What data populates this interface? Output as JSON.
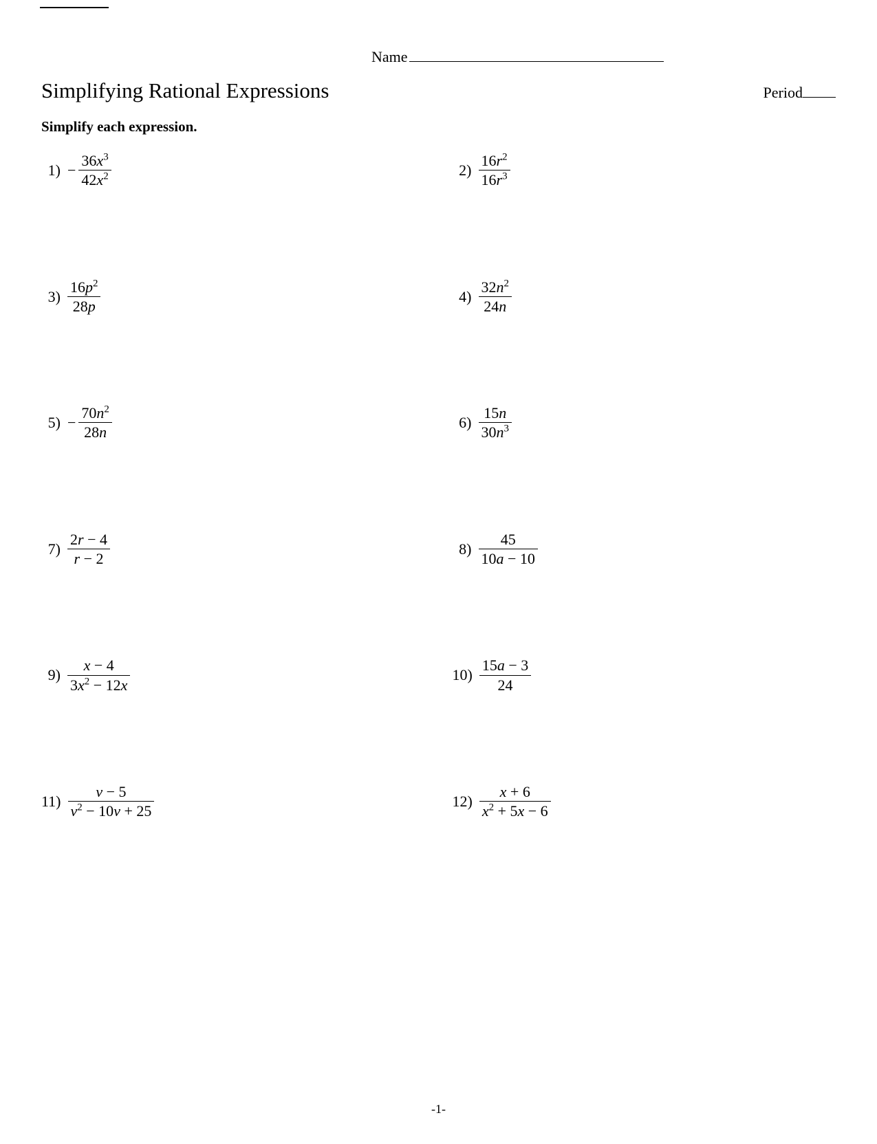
{
  "header": {
    "name_label": "Name",
    "period_label": "Period"
  },
  "title": "Simplifying Rational Expressions",
  "instructions": "Simplify each expression.",
  "problems": [
    {
      "n": "1)",
      "neg": true,
      "num_html": "36<span class='var'>x</span><sup>3</sup>",
      "den_html": "42<span class='var'>x</span><sup>2</sup>"
    },
    {
      "n": "2)",
      "neg": false,
      "num_html": "16<span class='var'>r</span><sup>2</sup>",
      "den_html": "16<span class='var'>r</span><sup>3</sup>"
    },
    {
      "n": "3)",
      "neg": false,
      "num_html": "16<span class='var'>p</span><sup>2</sup>",
      "den_html": "28<span class='var'>p</span>"
    },
    {
      "n": "4)",
      "neg": false,
      "num_html": "32<span class='var'>n</span><sup>2</sup>",
      "den_html": "24<span class='var'>n</span>"
    },
    {
      "n": "5)",
      "neg": true,
      "num_html": "70<span class='var'>n</span><sup>2</sup>",
      "den_html": "28<span class='var'>n</span>"
    },
    {
      "n": "6)",
      "neg": false,
      "num_html": "15<span class='var'>n</span>",
      "den_html": "30<span class='var'>n</span><sup>3</sup>"
    },
    {
      "n": "7)",
      "neg": false,
      "num_html": "2<span class='var'>r</span> − 4",
      "den_html": "<span class='var'>r</span> − 2"
    },
    {
      "n": "8)",
      "neg": false,
      "num_html": "45",
      "den_html": "10<span class='var'>a</span> − 10"
    },
    {
      "n": "9)",
      "neg": false,
      "num_html": "<span class='var'>x</span> − 4",
      "den_html": "3<span class='var'>x</span><sup>2</sup> − 12<span class='var'>x</span>"
    },
    {
      "n": "10)",
      "neg": false,
      "num_html": "15<span class='var'>a</span> − 3",
      "den_html": "24"
    },
    {
      "n": "11)",
      "neg": false,
      "num_html": "<span class='var'>v</span> − 5",
      "den_html": "<span class='var'>v</span><sup>2</sup> − 10<span class='var'>v</span> + 25"
    },
    {
      "n": "12)",
      "neg": false,
      "num_html": "<span class='var'>x</span> + 6",
      "den_html": "<span class='var'>x</span><sup>2</sup> + 5<span class='var'>x</span> − 6"
    }
  ],
  "page_number": "-1-"
}
